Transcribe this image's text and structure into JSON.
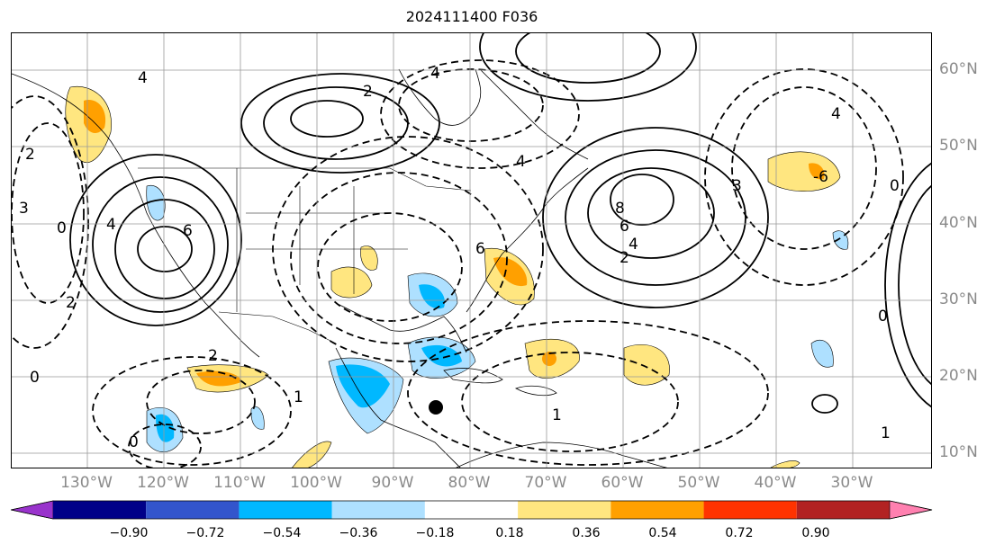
{
  "title": "2024111400 F036",
  "map": {
    "type": "contour-map",
    "projection": "lat-lon",
    "lon_range": [
      "140°W",
      "20°W"
    ],
    "lat_range": [
      "8°N",
      "65°N"
    ],
    "gridlines": true,
    "marker": "black-dot-marker",
    "contour_style": "black solid = positive, dashed = negative"
  },
  "lon_labels": [
    "130°W",
    "120°W",
    "110°W",
    "100°W",
    "90°W",
    "80°W",
    "70°W",
    "60°W",
    "50°W",
    "40°W",
    "30°W"
  ],
  "lat_labels": [
    "60°N",
    "50°N",
    "40°N",
    "30°N",
    "20°N",
    "10°N"
  ],
  "contour_labels": [
    "4",
    "4",
    "2",
    "0",
    "3",
    "4",
    "2",
    "6",
    "8",
    "6",
    "4",
    "2",
    "4",
    "3",
    "0",
    "4",
    "-6",
    "0",
    "2",
    "1",
    "0",
    "1",
    "0",
    "1",
    "6",
    "2"
  ],
  "colorbar": {
    "colors": [
      "#9933cc",
      "#000088",
      "#3355cc",
      "#00b8ff",
      "#aee0ff",
      "#ffffff",
      "#ffe680",
      "#ffa000",
      "#ff3300",
      "#b22222",
      "#ff80b0"
    ],
    "ticks": [
      "−0.90",
      "−0.72",
      "−0.54",
      "−0.36",
      "−0.18",
      "0.18",
      "0.36",
      "0.54",
      "0.72",
      "0.90"
    ],
    "extend": "both"
  },
  "colors": {
    "positive_shading": [
      "#ffe680",
      "#ffa000"
    ],
    "negative_shading": [
      "#aee0ff",
      "#00b8ff"
    ],
    "label_gray": "#8a8a8a"
  }
}
